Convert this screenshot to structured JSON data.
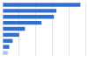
{
  "chart_data": {
    "type": "bar",
    "orientation": "horizontal",
    "categories": [
      null,
      null,
      null,
      null,
      null,
      null,
      null,
      null,
      null
    ],
    "values": [
      94,
      65,
      62,
      47,
      27,
      20,
      12,
      8,
      6
    ],
    "colors": [
      "#2f6fd1",
      "#2f6fd1",
      "#2f6fd1",
      "#2f6fd1",
      "#2f6fd1",
      "#2f6fd1",
      "#2f6fd1",
      "#2f6fd1",
      "#a9c4ee"
    ],
    "xlim": [
      0,
      100
    ],
    "xticks": [
      0,
      20,
      40,
      60,
      80,
      100
    ],
    "grid": true,
    "tick_labels": false
  }
}
